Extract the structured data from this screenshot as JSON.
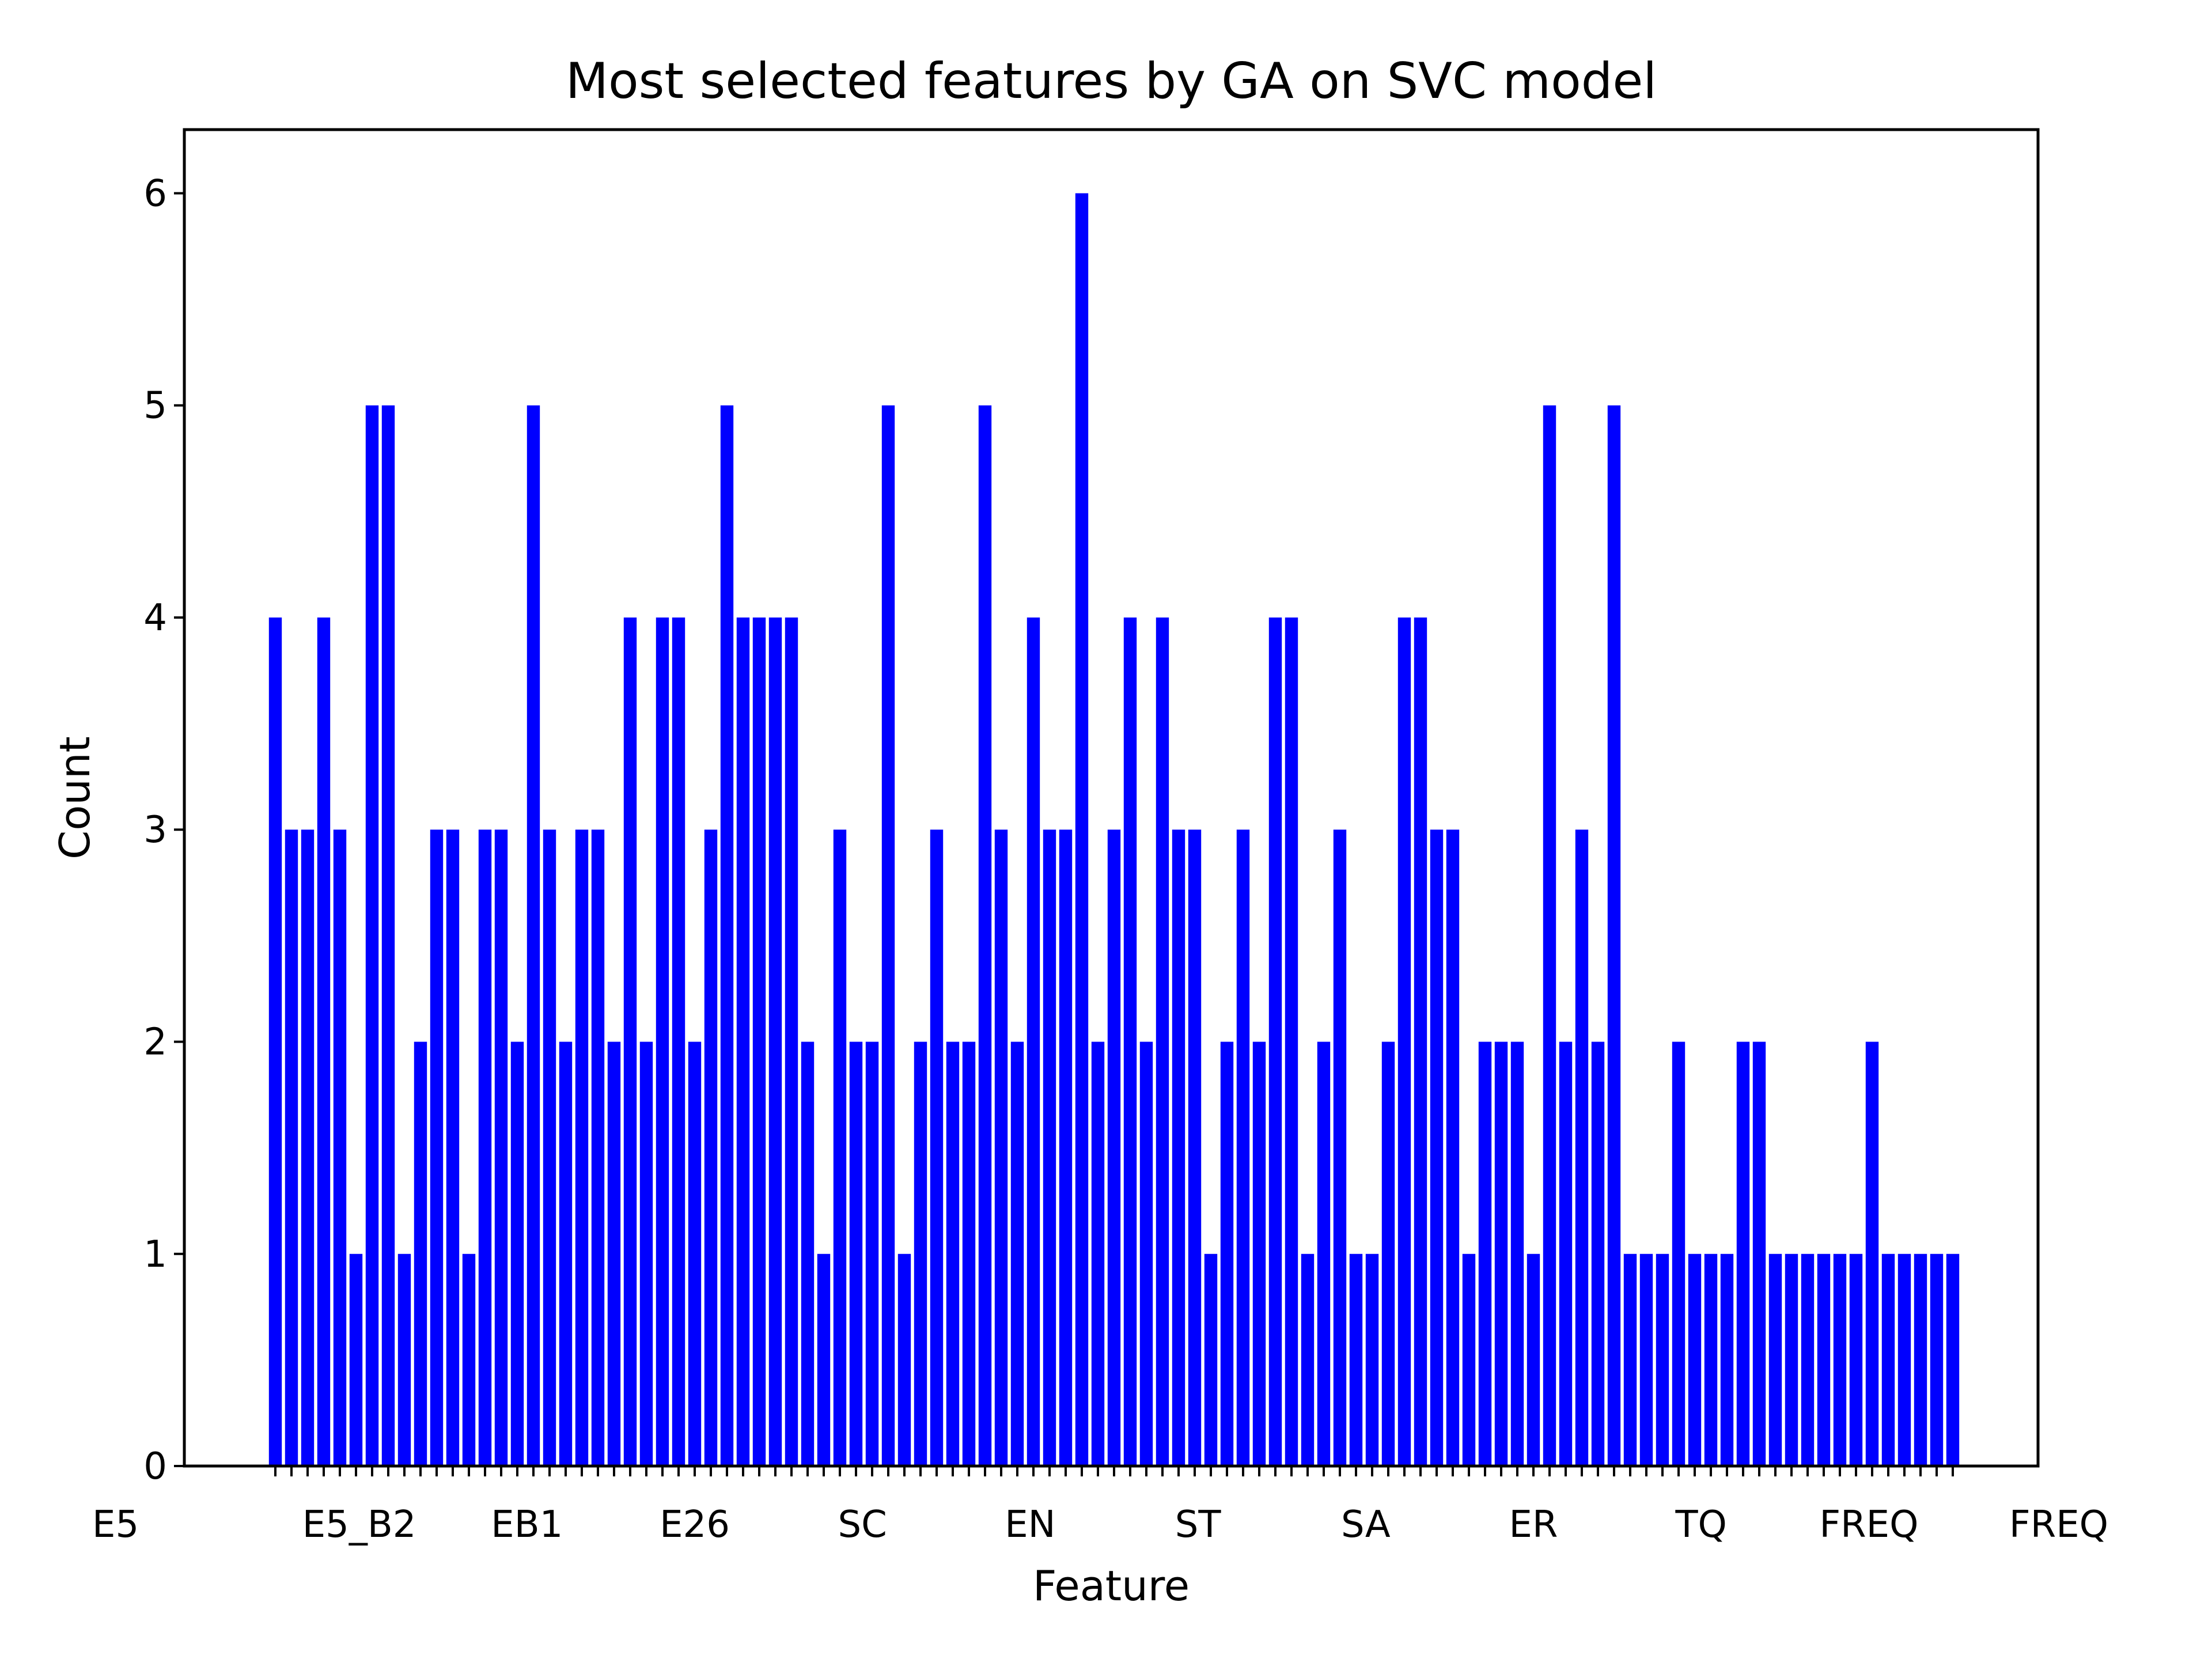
{
  "chart_data": {
    "type": "bar",
    "title": "Most selected features by GA on SVC model",
    "xlabel": "Feature",
    "ylabel": "Count",
    "ylim": [
      0,
      6.3
    ],
    "yticks": [
      0,
      1,
      2,
      3,
      4,
      5,
      6
    ],
    "bar_color": "#0000ff",
    "grid": false,
    "values": [
      4,
      3,
      3,
      4,
      3,
      1,
      5,
      5,
      1,
      2,
      3,
      3,
      1,
      3,
      3,
      2,
      5,
      3,
      2,
      3,
      3,
      2,
      4,
      2,
      4,
      4,
      2,
      3,
      5,
      4,
      4,
      4,
      4,
      2,
      1,
      3,
      2,
      2,
      5,
      1,
      2,
      3,
      2,
      2,
      5,
      3,
      2,
      4,
      3,
      3,
      6,
      2,
      3,
      4,
      2,
      4,
      3,
      3,
      1,
      2,
      3,
      2,
      4,
      4,
      1,
      2,
      3,
      1,
      1,
      2,
      4,
      4,
      3,
      3,
      1,
      2,
      2,
      2,
      1,
      5,
      2,
      3,
      2,
      5,
      1,
      1,
      1,
      2,
      1,
      1,
      1,
      2,
      2,
      1,
      1,
      1,
      1,
      1,
      1,
      2,
      1,
      1,
      1,
      1,
      1
    ],
    "visible_tick_text": {
      "first": "E5",
      "last": "FREQ",
      "overlap_fragments": [
        "E5_B2",
        "EB1",
        "E26",
        "SC",
        "EN",
        "ST",
        "SA",
        "ER",
        "TQ",
        "FREQ"
      ]
    }
  }
}
